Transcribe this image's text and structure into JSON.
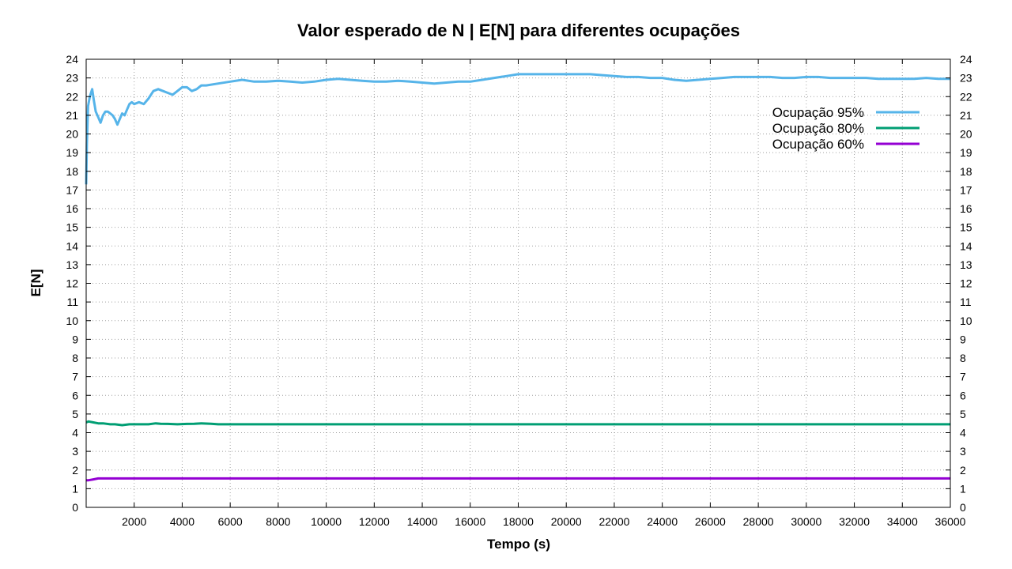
{
  "chart_data": {
    "type": "line",
    "title": "Valor esperado de N | E[N] para diferentes ocupações",
    "xlabel": "Tempo (s)",
    "ylabel": "E[N]",
    "xlim": [
      0,
      36000
    ],
    "ylim": [
      0,
      24
    ],
    "x_ticks": [
      2000,
      4000,
      6000,
      8000,
      10000,
      12000,
      14000,
      16000,
      18000,
      20000,
      22000,
      24000,
      26000,
      28000,
      30000,
      32000,
      34000,
      36000
    ],
    "y_ticks": [
      0,
      1,
      2,
      3,
      4,
      5,
      6,
      7,
      8,
      9,
      10,
      11,
      12,
      13,
      14,
      15,
      16,
      17,
      18,
      19,
      20,
      21,
      22,
      23,
      24
    ],
    "grid": true,
    "mirror_y_axis": true,
    "legend_position": "top-right",
    "series": [
      {
        "name": "Ocupação 95%",
        "color": "#56b4e9",
        "x": [
          0,
          30,
          80,
          150,
          250,
          320,
          400,
          500,
          600,
          700,
          800,
          900,
          1000,
          1100,
          1200,
          1300,
          1400,
          1500,
          1600,
          1700,
          1800,
          1900,
          2000,
          2200,
          2400,
          2600,
          2800,
          3000,
          3200,
          3400,
          3600,
          3800,
          4000,
          4200,
          4400,
          4600,
          4800,
          5000,
          5500,
          6000,
          6500,
          7000,
          7500,
          8000,
          8500,
          9000,
          9500,
          10000,
          10500,
          11000,
          11500,
          12000,
          12500,
          13000,
          13500,
          14000,
          14500,
          15000,
          15500,
          16000,
          16500,
          17000,
          17500,
          18000,
          18500,
          19000,
          19500,
          20000,
          20500,
          21000,
          21500,
          22000,
          22500,
          23000,
          23500,
          24000,
          24500,
          25000,
          25500,
          26000,
          26500,
          27000,
          27500,
          28000,
          28500,
          29000,
          29500,
          30000,
          30500,
          31000,
          31500,
          32000,
          32500,
          33000,
          33500,
          34000,
          34500,
          35000,
          35500,
          36000
        ],
        "values": [
          17.3,
          19.5,
          21.5,
          22.0,
          22.4,
          21.8,
          21.2,
          20.9,
          20.6,
          21.0,
          21.2,
          21.2,
          21.1,
          21.0,
          20.8,
          20.5,
          20.8,
          21.1,
          21.0,
          21.3,
          21.6,
          21.7,
          21.6,
          21.7,
          21.6,
          21.9,
          22.3,
          22.4,
          22.3,
          22.2,
          22.1,
          22.3,
          22.5,
          22.5,
          22.3,
          22.4,
          22.6,
          22.6,
          22.7,
          22.8,
          22.9,
          22.8,
          22.8,
          22.85,
          22.8,
          22.75,
          22.8,
          22.9,
          22.95,
          22.9,
          22.85,
          22.8,
          22.8,
          22.85,
          22.8,
          22.75,
          22.7,
          22.75,
          22.8,
          22.8,
          22.9,
          23.0,
          23.1,
          23.2,
          23.2,
          23.2,
          23.2,
          23.2,
          23.2,
          23.2,
          23.15,
          23.1,
          23.05,
          23.05,
          23.0,
          23.0,
          22.9,
          22.85,
          22.9,
          22.95,
          23.0,
          23.05,
          23.05,
          23.05,
          23.05,
          23.0,
          23.0,
          23.05,
          23.05,
          23.0,
          23.0,
          23.0,
          23.0,
          22.95,
          22.95,
          22.95,
          22.95,
          23.0,
          22.95,
          22.95
        ]
      },
      {
        "name": "Ocupação 80%",
        "color": "#009e73",
        "x": [
          0,
          100,
          300,
          500,
          700,
          1000,
          1200,
          1500,
          1800,
          2200,
          2600,
          2900,
          3100,
          3400,
          3800,
          4200,
          4500,
          4800,
          5200,
          5500,
          6000,
          8000,
          10000,
          15000,
          20000,
          25000,
          30000,
          36000
        ],
        "values": [
          4.55,
          4.6,
          4.55,
          4.5,
          4.5,
          4.45,
          4.45,
          4.4,
          4.45,
          4.45,
          4.45,
          4.5,
          4.48,
          4.47,
          4.45,
          4.47,
          4.48,
          4.5,
          4.48,
          4.45,
          4.45,
          4.45,
          4.45,
          4.45,
          4.45,
          4.45,
          4.45,
          4.45
        ]
      },
      {
        "name": "Ocupação 60%",
        "color": "#9400d3",
        "x": [
          0,
          100,
          300,
          500,
          700,
          1000,
          2000,
          5000,
          10000,
          20000,
          30000,
          36000
        ],
        "values": [
          1.45,
          1.45,
          1.5,
          1.55,
          1.55,
          1.55,
          1.55,
          1.55,
          1.55,
          1.55,
          1.55,
          1.55
        ]
      }
    ]
  }
}
